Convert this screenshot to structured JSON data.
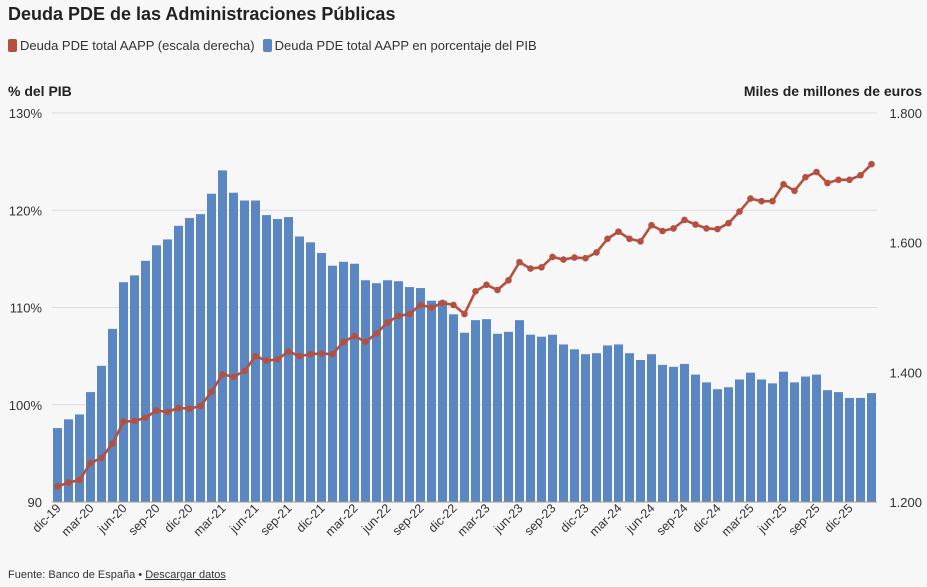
{
  "chart_data": {
    "type": "bar+line",
    "title": "Deuda PDE de las Administraciones Públicas",
    "legend": [
      {
        "label": "Deuda PDE total AAPP (escala derecha)",
        "color": "#b5503f"
      },
      {
        "label": "Deuda PDE total AAPP en porcentaje del PIB",
        "color": "#5a87c1"
      }
    ],
    "ylabel_left": "% del PIB",
    "ylabel_right": "Miles de millones de euros",
    "ylim_left": [
      90,
      130
    ],
    "ylim_right": [
      1200,
      1800
    ],
    "yticks_left": [
      90,
      100,
      110,
      120,
      130
    ],
    "yticks_left_labels": [
      "90",
      "100%",
      "110%",
      "120%",
      "130%"
    ],
    "yticks_right": [
      1200,
      1400,
      1600,
      1800
    ],
    "yticks_right_labels": [
      "1.200",
      "1.400",
      "1.600",
      "1.800"
    ],
    "xtick_labels": [
      "dic-19",
      "mar-20",
      "jun-20",
      "sep-20",
      "dic-20",
      "mar-21",
      "jun-21",
      "sep-21",
      "dic-21",
      "mar-22",
      "jun-22",
      "sep-22",
      "dic-22",
      "mar-23",
      "jun-23",
      "sep-23",
      "dic-23",
      "mar-24",
      "jun-24",
      "sep-24",
      "dic-24",
      "mar-25",
      "jun-25",
      "sep-25",
      "dic-25"
    ],
    "start_month": "dic-19",
    "series": [
      {
        "name": "Deuda PDE total AAPP en porcentaje del PIB",
        "type": "bar",
        "color": "#5a87c1",
        "values": [
          97.6,
          98.5,
          99.0,
          101.3,
          104.0,
          107.8,
          112.6,
          113.3,
          114.8,
          116.4,
          117.0,
          118.4,
          119.2,
          119.6,
          121.7,
          124.1,
          121.8,
          121.0,
          121.0,
          119.5,
          119.1,
          119.3,
          117.3,
          116.7,
          115.6,
          114.3,
          114.7,
          114.5,
          112.8,
          112.5,
          112.8,
          112.7,
          112.1,
          112.0,
          110.7,
          110.7,
          109.3,
          107.4,
          108.7,
          108.8,
          107.3,
          107.5,
          108.7,
          107.2,
          107.0,
          107.2,
          106.2,
          105.7,
          105.2,
          105.3,
          106.1,
          106.2,
          105.3,
          104.6,
          105.2,
          104.1,
          103.9,
          104.2,
          103.1,
          102.3,
          101.6,
          101.8,
          102.6,
          103.3,
          102.6,
          102.2,
          103.4,
          102.3,
          102.9,
          103.1,
          101.5,
          101.3,
          100.7,
          100.7,
          101.2
        ]
      },
      {
        "name": "Deuda PDE total AAPP (escala derecha)",
        "type": "line",
        "color": "#b5503f",
        "values": [
          1224,
          1230,
          1234,
          1260,
          1268,
          1290,
          1324,
          1325,
          1330,
          1341,
          1339,
          1345,
          1344,
          1348,
          1370,
          1397,
          1393,
          1402,
          1425,
          1418,
          1420,
          1432,
          1425,
          1428,
          1429,
          1428,
          1447,
          1456,
          1447,
          1460,
          1477,
          1487,
          1490,
          1504,
          1500,
          1507,
          1504,
          1490,
          1525,
          1535,
          1527,
          1542,
          1570,
          1560,
          1562,
          1578,
          1574,
          1577,
          1576,
          1585,
          1606,
          1617,
          1606,
          1602,
          1627,
          1618,
          1622,
          1635,
          1628,
          1622,
          1621,
          1630,
          1648,
          1668,
          1664,
          1664,
          1690,
          1680,
          1701,
          1709,
          1692,
          1697,
          1697,
          1704,
          1721
        ]
      }
    ]
  },
  "footer": {
    "source": "Fuente: Banco de España",
    "separator": "•",
    "link": "Descargar datos"
  }
}
